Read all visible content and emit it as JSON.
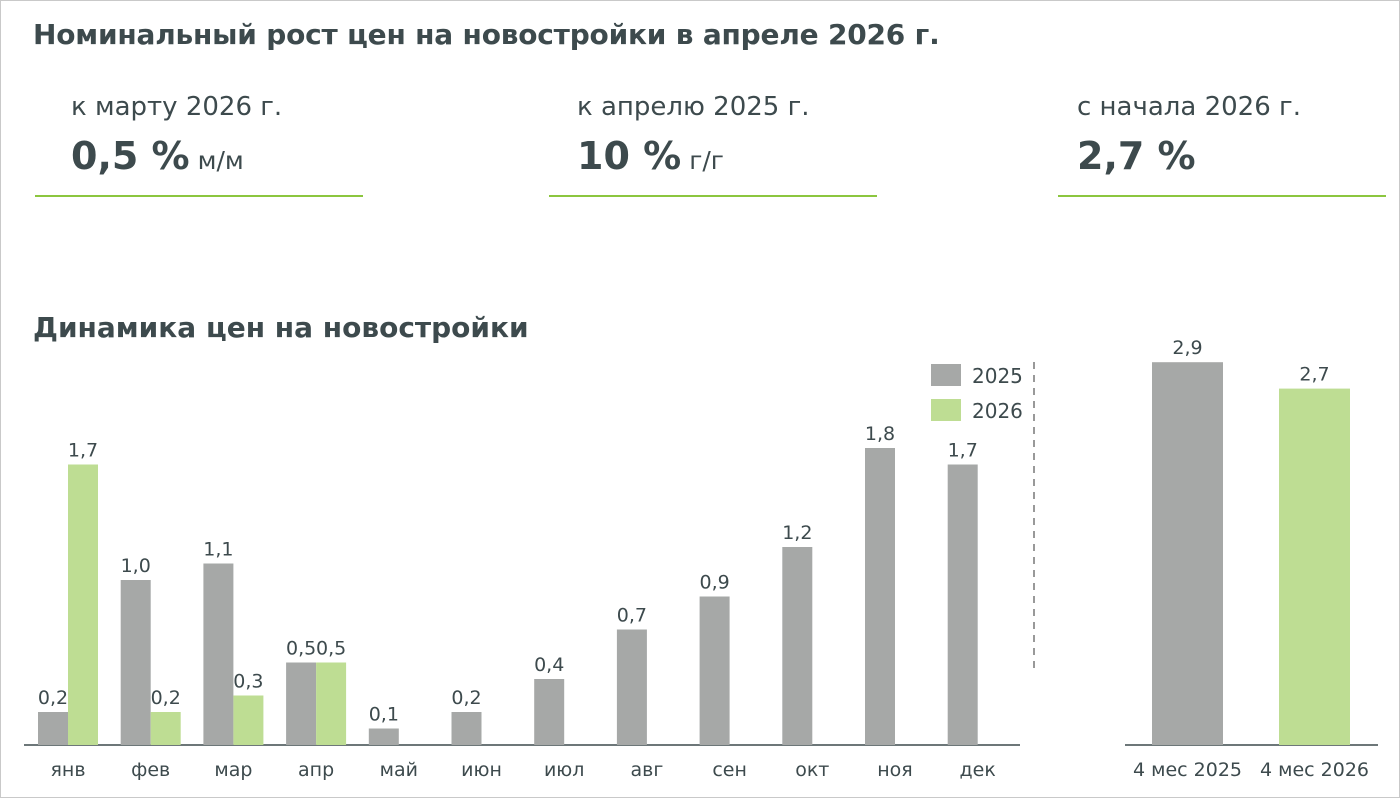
{
  "page": {
    "title": "Номинальный рост цен на новостройки в апреле 2026 г.",
    "section_title": "Динамика цен на новостройки"
  },
  "kpis": [
    {
      "label": "к марту 2026 г.",
      "value": "0,5 %",
      "unit": "м/м"
    },
    {
      "label": "к апрелю 2025 г.",
      "value": "10 %",
      "unit": "г/г"
    },
    {
      "label": "с начала 2026 г.",
      "value": "2,7 %",
      "unit": ""
    }
  ],
  "colors": {
    "series_2025": "#a6a8a7",
    "series_2026": "#bedd93",
    "accent": "#8cc63f",
    "text": "#3d4a4d"
  },
  "chart_data": [
    {
      "type": "bar",
      "title": "Динамика цен на новостройки",
      "categories": [
        "янв",
        "фев",
        "мар",
        "апр",
        "май",
        "июн",
        "июл",
        "авг",
        "сен",
        "окт",
        "ноя",
        "дек"
      ],
      "series": [
        {
          "name": "2025",
          "values": [
            0.2,
            1.0,
            1.1,
            0.5,
            0.1,
            0.2,
            0.4,
            0.7,
            0.9,
            1.2,
            1.8,
            1.7
          ],
          "labels": [
            "0,2",
            "1,0",
            "1,1",
            "0,5",
            "0,1",
            "0,2",
            "0,4",
            "0,7",
            "0,9",
            "1,2",
            "1,8",
            "1,7"
          ]
        },
        {
          "name": "2026",
          "values": [
            1.7,
            0.2,
            0.3,
            0.5,
            null,
            null,
            null,
            null,
            null,
            null,
            null,
            null
          ],
          "labels": [
            "1,7",
            "0,2",
            "0,3",
            "0,5",
            "",
            "",
            "",
            "",
            "",
            "",
            "",
            ""
          ]
        }
      ],
      "legend": "top-right",
      "ylim": [
        0,
        1.8
      ],
      "grid": false
    },
    {
      "type": "bar",
      "categories": [
        "4 мес 2025",
        "4 мес 2026"
      ],
      "values": [
        2.9,
        2.7
      ],
      "labels": [
        "2,9",
        "2,7"
      ],
      "ylim": [
        0,
        2.9
      ],
      "grid": false
    }
  ]
}
